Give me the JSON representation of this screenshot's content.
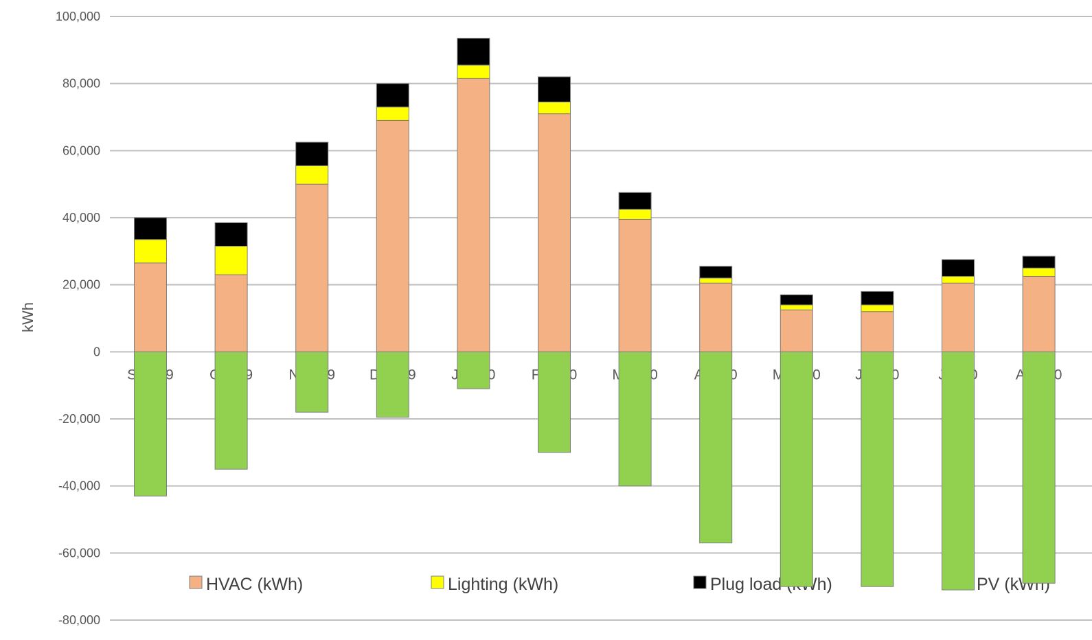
{
  "chart_data": {
    "type": "bar",
    "stacked": true,
    "title": "",
    "xlabel": "",
    "ylabel": "kWh",
    "ylim": [
      -80000,
      100000
    ],
    "yticks": [
      100000,
      80000,
      60000,
      40000,
      20000,
      0,
      -20000,
      -40000,
      -60000,
      -80000
    ],
    "ytick_labels": [
      "100,000",
      "80,000",
      "60,000",
      "40,000",
      "20,000",
      "0",
      "-20,000",
      "-40,000",
      "-60,000",
      "-80,000"
    ],
    "grid": true,
    "legend_position": "bottom",
    "categories": [
      "Sep-19",
      "Oct-19",
      "Nov-19",
      "Dec-19",
      "Jan-20",
      "Feb-20",
      "Mar-20",
      "Apr-20",
      "May-20",
      "Jun-20",
      "Jul-20",
      "Aug-20"
    ],
    "series": [
      {
        "name": "HVAC (kWh)",
        "color": "#F4B183",
        "values": [
          26500,
          23000,
          50000,
          69000,
          81500,
          71000,
          39500,
          20500,
          12500,
          12000,
          20500,
          22500
        ]
      },
      {
        "name": "Lighting (kWh)",
        "color": "#FFFF00",
        "values": [
          7000,
          8500,
          5500,
          4000,
          4000,
          3500,
          3000,
          1500,
          1500,
          2000,
          2000,
          2500
        ]
      },
      {
        "name": "Plug load (kWh)",
        "color": "#000000",
        "values": [
          6500,
          7000,
          7000,
          7000,
          8000,
          7500,
          5000,
          3500,
          3000,
          4000,
          5000,
          3500
        ]
      },
      {
        "name": "PV (kWh)",
        "color": "#92D050",
        "values": [
          -43000,
          -35000,
          -18000,
          -19500,
          -11000,
          -30000,
          -40000,
          -57000,
          -70000,
          -70000,
          -71000,
          -69000
        ]
      }
    ]
  }
}
